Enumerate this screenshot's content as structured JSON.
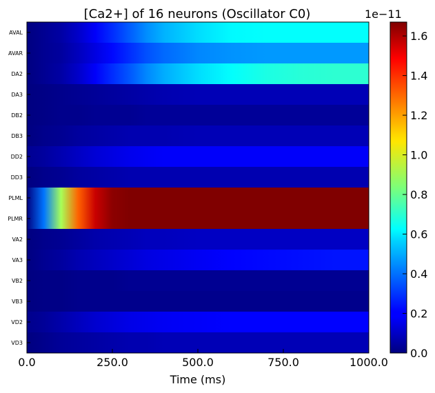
{
  "chart_data": {
    "type": "heatmap",
    "title": "[Ca2+] of 16 neurons (Oscillator C0)",
    "xlabel": "Time (ms)",
    "ylabel": "",
    "xlim": [
      0,
      1000
    ],
    "x_ticks": [
      "0.0",
      "250.0",
      "500.0",
      "750.0",
      "1000.0"
    ],
    "rows": [
      "AVAL",
      "AVAR",
      "DA2",
      "DA3",
      "DB2",
      "DB3",
      "DD2",
      "DD3",
      "PLML",
      "PLMR",
      "VA2",
      "VA3",
      "VB2",
      "VB3",
      "VD2",
      "VD3"
    ],
    "colormap": "jet",
    "color_range": [
      0,
      1.67e-11
    ],
    "colorbar_ticks": [
      "0.0",
      "0.2",
      "0.4",
      "0.6",
      "0.8",
      "1.0",
      "1.2",
      "1.4",
      "1.6"
    ],
    "colorbar_exponent": "1e−11",
    "time_points_ms": [
      0,
      50,
      100,
      150,
      200,
      250,
      300,
      350,
      400,
      500,
      600,
      700,
      800,
      900,
      1000
    ],
    "values_1e-11": [
      [
        0.0,
        0.03,
        0.06,
        0.12,
        0.2,
        0.28,
        0.36,
        0.44,
        0.5,
        0.57,
        0.62,
        0.63,
        0.63,
        0.63,
        0.63
      ],
      [
        0.0,
        0.03,
        0.05,
        0.1,
        0.16,
        0.22,
        0.28,
        0.34,
        0.38,
        0.43,
        0.45,
        0.46,
        0.46,
        0.46,
        0.46
      ],
      [
        0.0,
        0.03,
        0.06,
        0.12,
        0.2,
        0.28,
        0.35,
        0.43,
        0.49,
        0.57,
        0.63,
        0.67,
        0.69,
        0.7,
        0.7
      ],
      [
        0.0,
        0.01,
        0.02,
        0.03,
        0.04,
        0.05,
        0.06,
        0.07,
        0.08,
        0.09,
        0.09,
        0.09,
        0.09,
        0.09,
        0.09
      ],
      [
        0.0,
        0.01,
        0.02,
        0.02,
        0.03,
        0.03,
        0.03,
        0.04,
        0.04,
        0.04,
        0.04,
        0.04,
        0.04,
        0.04,
        0.04
      ],
      [
        0.0,
        0.02,
        0.03,
        0.05,
        0.06,
        0.07,
        0.08,
        0.08,
        0.08,
        0.09,
        0.09,
        0.09,
        0.09,
        0.09,
        0.09
      ],
      [
        0.03,
        0.05,
        0.08,
        0.11,
        0.14,
        0.16,
        0.18,
        0.19,
        0.2,
        0.2,
        0.2,
        0.2,
        0.2,
        0.2,
        0.2
      ],
      [
        0.0,
        0.02,
        0.03,
        0.05,
        0.06,
        0.07,
        0.08,
        0.08,
        0.08,
        0.08,
        0.08,
        0.08,
        0.08,
        0.08,
        0.08
      ],
      [
        0.0,
        0.4,
        0.9,
        1.3,
        1.55,
        1.65,
        1.67,
        1.67,
        1.67,
        1.67,
        1.67,
        1.67,
        1.67,
        1.67,
        1.67
      ],
      [
        0.0,
        0.4,
        0.9,
        1.3,
        1.55,
        1.65,
        1.67,
        1.67,
        1.67,
        1.67,
        1.67,
        1.67,
        1.67,
        1.67,
        1.67
      ],
      [
        0.0,
        0.02,
        0.03,
        0.05,
        0.07,
        0.08,
        0.09,
        0.1,
        0.1,
        0.11,
        0.11,
        0.11,
        0.11,
        0.11,
        0.11
      ],
      [
        0.0,
        0.03,
        0.05,
        0.08,
        0.1,
        0.12,
        0.14,
        0.16,
        0.17,
        0.19,
        0.21,
        0.22,
        0.23,
        0.24,
        0.24
      ],
      [
        0.0,
        0.01,
        0.01,
        0.02,
        0.02,
        0.02,
        0.03,
        0.03,
        0.03,
        0.03,
        0.03,
        0.03,
        0.03,
        0.03,
        0.03
      ],
      [
        0.0,
        0.01,
        0.01,
        0.02,
        0.02,
        0.02,
        0.02,
        0.02,
        0.02,
        0.02,
        0.02,
        0.02,
        0.02,
        0.02,
        0.02
      ],
      [
        0.02,
        0.04,
        0.07,
        0.1,
        0.13,
        0.15,
        0.17,
        0.18,
        0.19,
        0.2,
        0.21,
        0.21,
        0.21,
        0.21,
        0.21
      ],
      [
        0.0,
        0.02,
        0.04,
        0.05,
        0.06,
        0.07,
        0.08,
        0.08,
        0.09,
        0.09,
        0.09,
        0.09,
        0.09,
        0.09,
        0.09
      ]
    ]
  }
}
